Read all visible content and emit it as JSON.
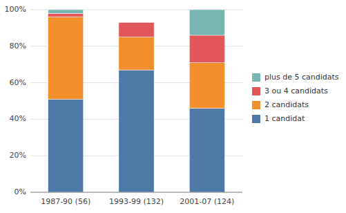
{
  "chart_data": {
    "type": "bar",
    "stacked": true,
    "grid": true,
    "legend": "right",
    "categories": [
      "1987-90 (56)",
      "1993-99 (132)",
      "2001-07 (124)"
    ],
    "series": [
      {
        "name": "1 candidat",
        "values": [
          0.51,
          0.67,
          0.46
        ]
      },
      {
        "name": "2 candidats",
        "values": [
          0.45,
          0.18,
          0.25
        ]
      },
      {
        "name": "3 ou 4 candidats",
        "values": [
          0.02,
          0.08,
          0.15
        ]
      },
      {
        "name": "plus de 5 candidats",
        "values": [
          0.02,
          0.0,
          0.14
        ]
      }
    ],
    "ylim": [
      0,
      1.0
    ],
    "yticks": [
      {
        "value": 0,
        "label": "0%"
      },
      {
        "value": 0.2,
        "label": "20%"
      },
      {
        "value": 0.4,
        "label": "40%"
      },
      {
        "value": 0.6,
        "label": "60%"
      },
      {
        "value": 0.8,
        "label": "80%"
      },
      {
        "value": 1.0,
        "label": "100%"
      }
    ]
  }
}
